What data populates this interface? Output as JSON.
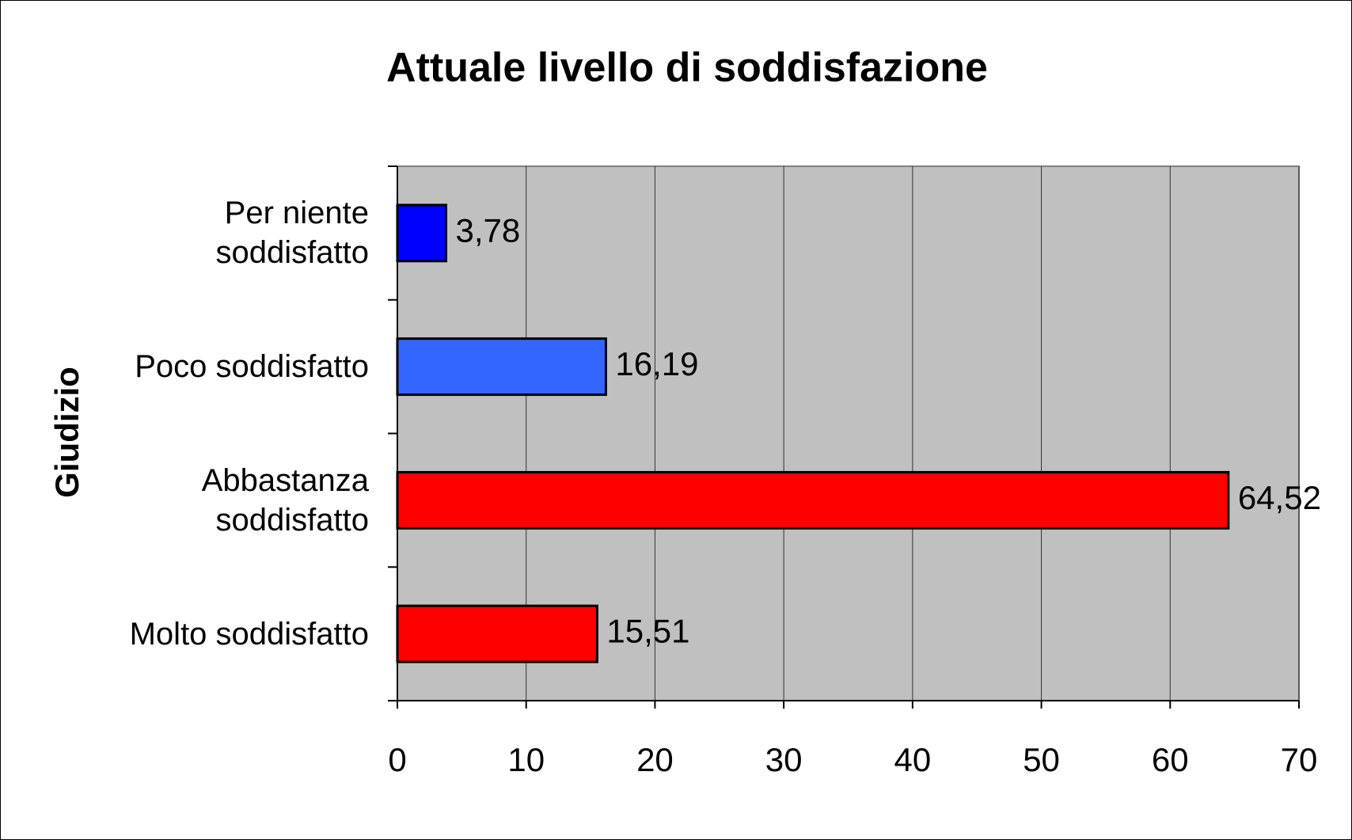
{
  "chart_data": {
    "type": "bar",
    "orientation": "horizontal",
    "title": "Attuale livello di soddisfazione",
    "y_label": "Giudizio",
    "categories": [
      "Per niente soddisfatto",
      "Poco soddisfatto",
      "Abbastanza soddisfatto",
      "Molto soddisfatto"
    ],
    "values": [
      3.78,
      16.19,
      64.52,
      15.51
    ],
    "value_labels": [
      "3,78",
      "16,19",
      "64,52",
      "15,51"
    ],
    "colors": [
      "#0000ff",
      "#3366ff",
      "#ff0000",
      "#ff0000"
    ],
    "xlim": [
      0,
      70
    ],
    "xticks": [
      0,
      10,
      20,
      30,
      40,
      50,
      60,
      70
    ],
    "grid": true
  }
}
